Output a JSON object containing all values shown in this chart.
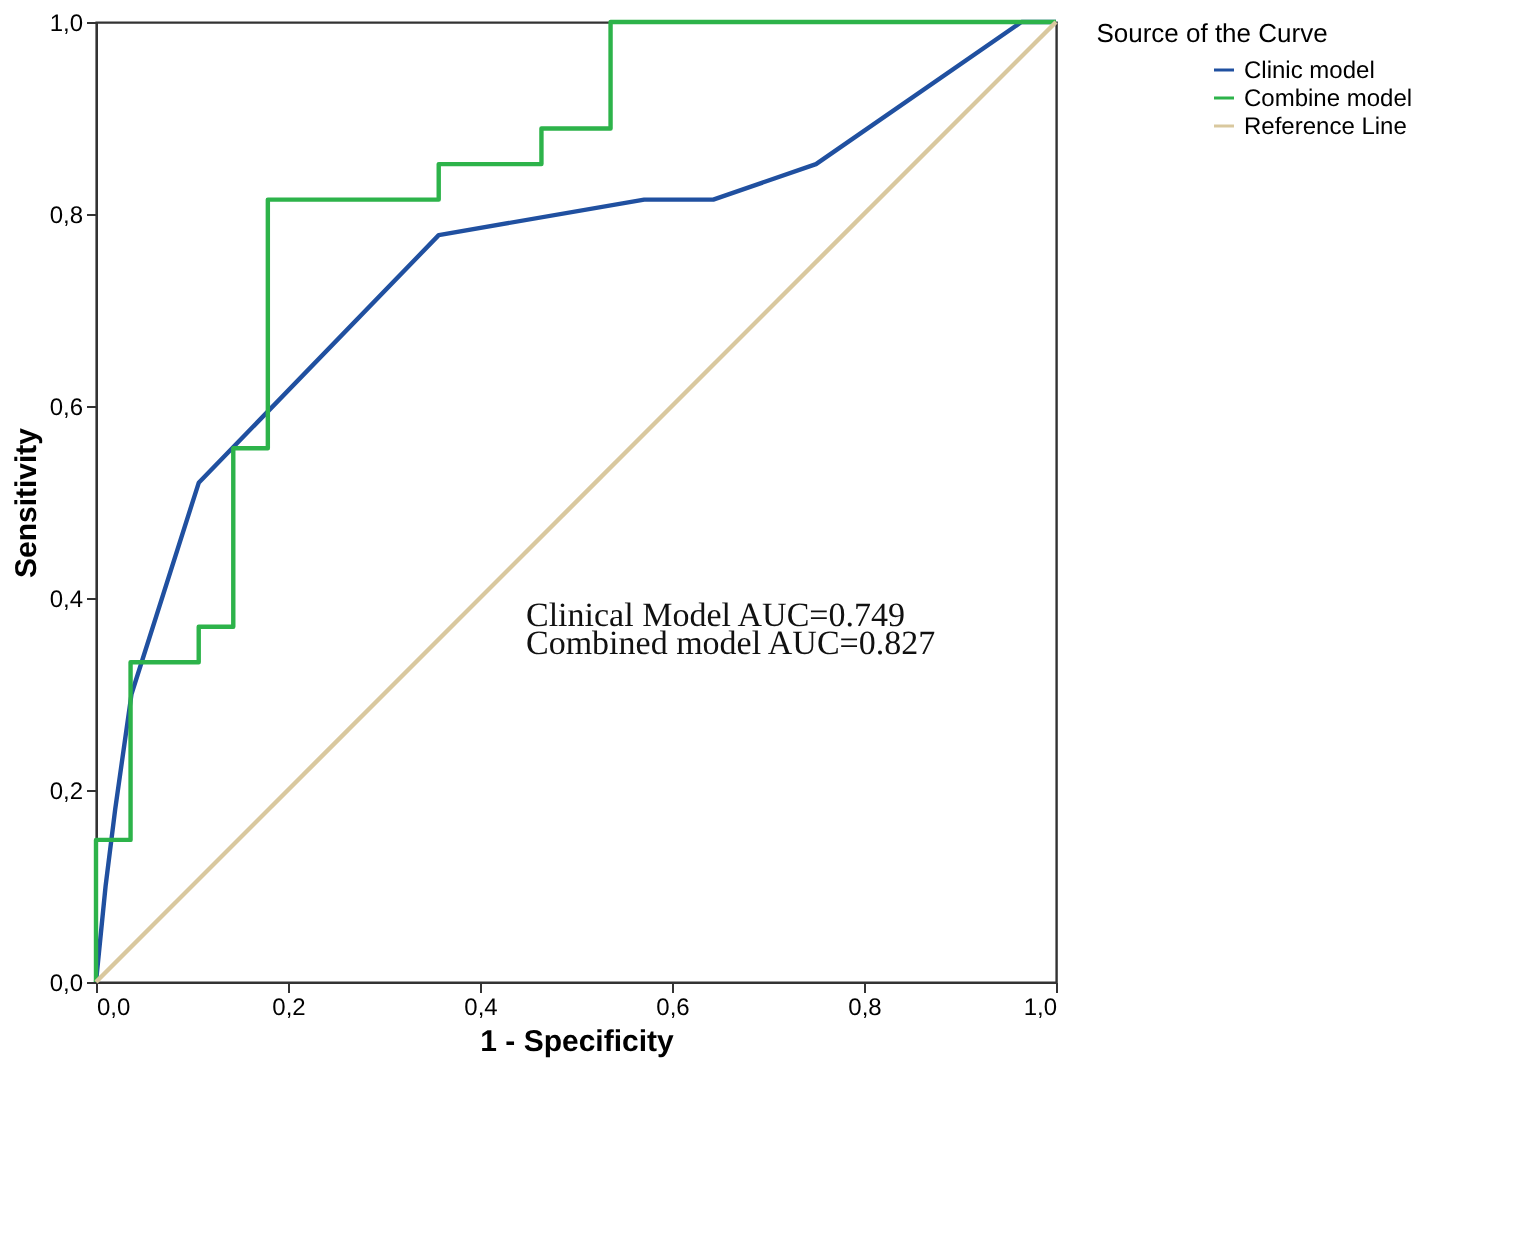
{
  "chart_data": {
    "type": "line",
    "xlabel": "1 - Specificity",
    "ylabel": "Sensitivity",
    "legend_title": "Source of the Curve",
    "legend": "right",
    "xlim": [
      0,
      1
    ],
    "ylim": [
      0,
      1
    ],
    "grid": false,
    "marker": "none",
    "line_style": "solid",
    "xticks": [
      {
        "value": 0,
        "label": "0,0"
      },
      {
        "value": 0.2,
        "label": "0,2"
      },
      {
        "value": 0.4,
        "label": "0,4"
      },
      {
        "value": 0.6,
        "label": "0,6"
      },
      {
        "value": 0.8,
        "label": "0,8"
      },
      {
        "value": 1,
        "label": "1,0"
      }
    ],
    "yticks": [
      {
        "value": 0,
        "label": "0,0"
      },
      {
        "value": 0.2,
        "label": "0,2"
      },
      {
        "value": 0.4,
        "label": "0,4"
      },
      {
        "value": 0.6,
        "label": "0,6"
      },
      {
        "value": 0.8,
        "label": "0,8"
      },
      {
        "value": 1,
        "label": "1,0"
      }
    ],
    "series": [
      {
        "name": "Clinic model",
        "color": "#2050a0",
        "x": [
          0,
          0.01,
          0.02,
          0.037,
          0.107,
          0.357,
          0.571,
          0.643,
          0.75,
          0.964,
          1
        ],
        "values": [
          0,
          0.1,
          0.18,
          0.3,
          0.52,
          0.778,
          0.815,
          0.815,
          0.852,
          1,
          1
        ]
      },
      {
        "name": "Combine model",
        "color": "#2db34a",
        "x": [
          0,
          0,
          0.036,
          0.036,
          0.107,
          0.107,
          0.143,
          0.143,
          0.179,
          0.179,
          0.357,
          0.357,
          0.464,
          0.464,
          0.536,
          0.536,
          1
        ],
        "values": [
          0,
          0.148,
          0.148,
          0.333,
          0.333,
          0.37,
          0.37,
          0.556,
          0.556,
          0.815,
          0.815,
          0.852,
          0.852,
          0.889,
          0.889,
          1,
          1
        ]
      },
      {
        "name": "Reference Line",
        "color": "#d9c89e",
        "x": [
          0,
          1
        ],
        "values": [
          0,
          1
        ]
      }
    ],
    "annotations": [
      "Clinical Model AUC=0.749",
      "Combined model AUC=0.827"
    ]
  }
}
